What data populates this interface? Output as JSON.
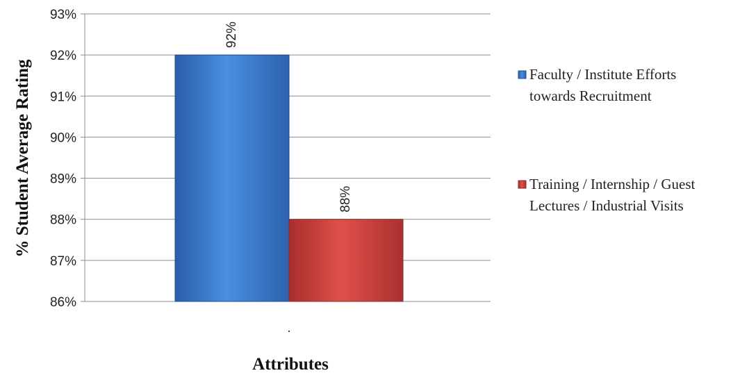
{
  "chart_data": {
    "type": "bar",
    "categories": [
      "."
    ],
    "series": [
      {
        "name": "Faculty / Institute Efforts towards Recruitment",
        "values": [
          92
        ],
        "label": "92%",
        "color": "#3a78c8"
      },
      {
        "name": "Training / Internship / Guest Lectures / Industrial Visits",
        "values": [
          88
        ],
        "label": "88%",
        "color": "#c8403c"
      }
    ],
    "legend": {
      "placement": "right",
      "entries": [
        [
          "Faculty / Institute Efforts",
          "towards Recruitment"
        ],
        [
          "Training / Internship / Guest",
          "Lectures / Industrial Visits"
        ]
      ]
    },
    "xlabel": "Attributes",
    "ylabel": "% Student Average Rating",
    "ylim": [
      86,
      93
    ],
    "yticks": [
      86,
      87,
      88,
      89,
      90,
      91,
      92,
      93
    ],
    "ytick_labels": [
      "86%",
      "87%",
      "88%",
      "89%",
      "90%",
      "91%",
      "92%",
      "93%"
    ],
    "grid": true
  }
}
